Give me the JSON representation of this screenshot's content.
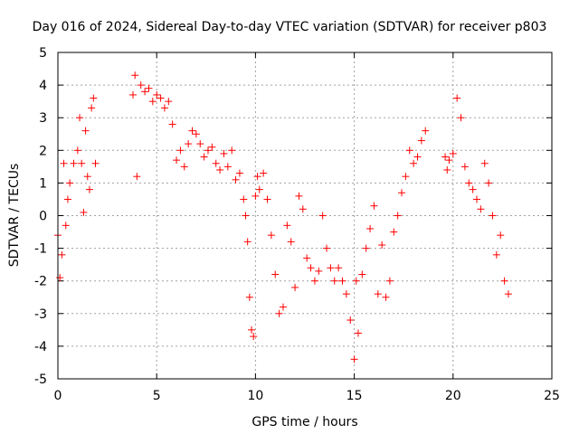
{
  "chart_data": {
    "type": "scatter",
    "title": "Day 016 of 2024, Sidereal Day-to-day VTEC variation (SDTVAR) for receiver p803",
    "xlabel": "GPS time / hours",
    "ylabel": "SDTVAR / TECUs",
    "xlim": [
      0,
      25
    ],
    "ylim": [
      -5,
      5
    ],
    "xticks": [
      0,
      5,
      10,
      15,
      20,
      25
    ],
    "yticks": [
      -5,
      -4,
      -3,
      -2,
      -1,
      0,
      1,
      2,
      3,
      4,
      5
    ],
    "xtick_labels": [
      "0",
      "5",
      "10",
      "15",
      "20",
      "25"
    ],
    "ytick_labels": [
      "-5",
      "-4",
      "-3",
      "-2",
      "-1",
      "0",
      "1",
      "2",
      "3",
      "4",
      "5"
    ],
    "grid": true,
    "marker": "+",
    "color": "#ff0000",
    "series": [
      {
        "name": "SDTVAR",
        "x": [
          0.0,
          0.1,
          0.2,
          0.3,
          0.4,
          0.5,
          0.6,
          0.8,
          1.0,
          1.1,
          1.2,
          1.3,
          1.4,
          1.5,
          1.6,
          1.7,
          1.8,
          1.9,
          3.8,
          3.9,
          4.0,
          4.2,
          4.4,
          4.6,
          4.8,
          5.0,
          5.2,
          5.4,
          5.6,
          5.8,
          6.0,
          6.2,
          6.4,
          6.6,
          6.8,
          7.0,
          7.2,
          7.4,
          7.6,
          7.8,
          8.0,
          8.2,
          8.4,
          8.6,
          8.8,
          9.0,
          9.2,
          9.4,
          9.5,
          9.6,
          9.7,
          9.8,
          9.9,
          10.0,
          10.1,
          10.2,
          10.4,
          10.6,
          10.8,
          11.0,
          11.2,
          11.4,
          11.6,
          11.8,
          12.0,
          12.2,
          12.4,
          12.6,
          12.8,
          13.0,
          13.2,
          13.4,
          13.6,
          13.8,
          14.0,
          14.2,
          14.4,
          14.6,
          14.8,
          15.0,
          15.1,
          15.2,
          15.4,
          15.6,
          15.8,
          16.0,
          16.2,
          16.4,
          16.6,
          16.8,
          17.0,
          17.2,
          17.4,
          17.6,
          17.8,
          18.0,
          18.2,
          18.4,
          18.6,
          19.6,
          19.7,
          19.8,
          20.0,
          20.2,
          20.4,
          20.6,
          20.8,
          21.0,
          21.2,
          21.4,
          21.6,
          21.8,
          22.0,
          22.2,
          22.4,
          22.6,
          22.8
        ],
        "y": [
          -0.6,
          -1.9,
          -1.2,
          1.6,
          -0.3,
          0.5,
          1.0,
          1.6,
          2.0,
          3.0,
          1.6,
          0.1,
          2.6,
          1.2,
          0.8,
          3.3,
          3.6,
          1.6,
          3.7,
          4.3,
          1.2,
          4.0,
          3.8,
          3.9,
          3.5,
          3.7,
          3.6,
          3.3,
          3.5,
          2.8,
          1.7,
          2.0,
          1.5,
          2.2,
          2.6,
          2.5,
          2.2,
          1.8,
          2.0,
          2.1,
          1.6,
          1.4,
          1.9,
          1.5,
          2.0,
          1.1,
          1.3,
          0.5,
          0.0,
          -0.8,
          -2.5,
          -3.5,
          -3.7,
          0.6,
          1.2,
          0.8,
          1.3,
          0.5,
          -0.6,
          -1.8,
          -3.0,
          -2.8,
          -0.3,
          -0.8,
          -2.2,
          0.6,
          0.2,
          -1.3,
          -1.6,
          -2.0,
          -1.7,
          0.0,
          -1.0,
          -1.6,
          -2.0,
          -1.6,
          -2.0,
          -2.4,
          -3.2,
          -4.4,
          -2.0,
          -3.6,
          -1.8,
          -1.0,
          -0.4,
          0.3,
          -2.4,
          -0.9,
          -2.5,
          -2.0,
          -0.5,
          0.0,
          0.7,
          1.2,
          2.0,
          1.6,
          1.8,
          2.3,
          2.6,
          1.8,
          1.4,
          1.7,
          1.9,
          3.6,
          3.0,
          1.5,
          1.0,
          0.8,
          0.5,
          0.2,
          1.6,
          1.0,
          0.0,
          -1.2,
          -0.6,
          -2.0,
          -2.4
        ]
      }
    ]
  }
}
